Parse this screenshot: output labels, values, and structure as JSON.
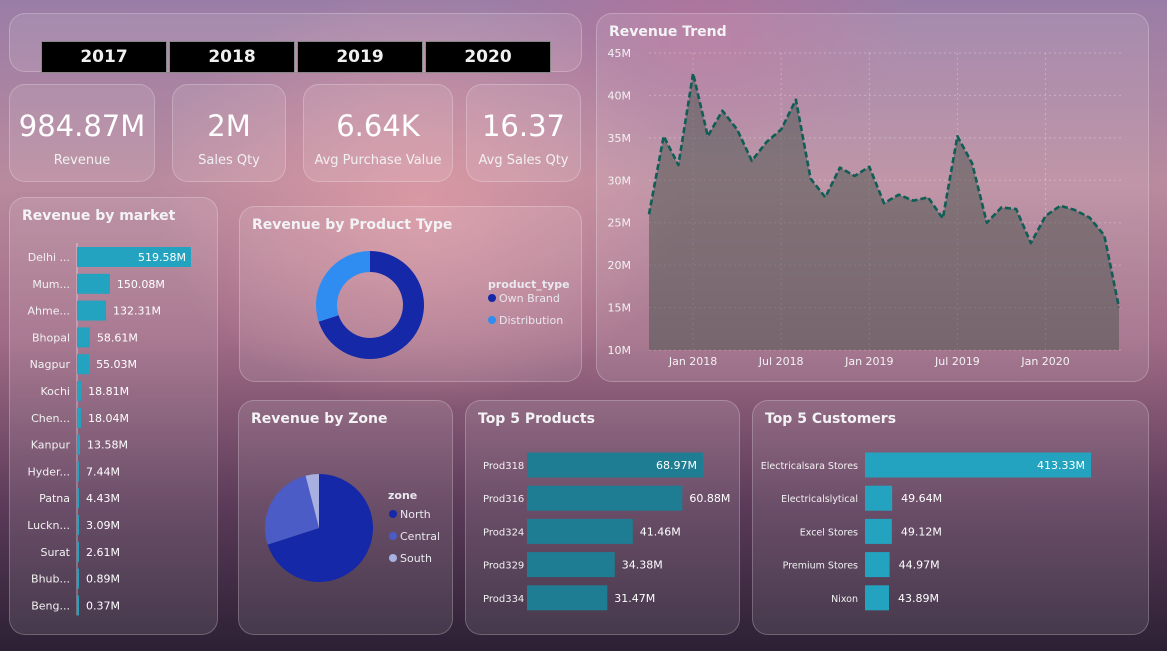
{
  "years": [
    "2017",
    "2018",
    "2019",
    "2020"
  ],
  "kpis": [
    {
      "value": "984.87M",
      "label": "Revenue"
    },
    {
      "value": "2M",
      "label": "Sales Qty"
    },
    {
      "value": "6.64K",
      "label": "Avg Purchase Value"
    },
    {
      "value": "16.37",
      "label": "Avg Sales Qty"
    }
  ],
  "colors": {
    "bar": "#23a3bf",
    "bar_dark": "#1e7d92",
    "navy": "#1428a8",
    "central": "#4b5cc7",
    "south": "#a7b0e0",
    "distribution": "#2f8cf0",
    "trend_line": "#0f5e56"
  },
  "chart_data": [
    {
      "name": "revenue-by-market",
      "type": "bar",
      "orientation": "horizontal",
      "title": "Revenue by market",
      "categories": [
        "Delhi ...",
        "Mum...",
        "Ahme...",
        "Bhopal",
        "Nagpur",
        "Kochi",
        "Chen...",
        "Kanpur",
        "Hyder...",
        "Patna",
        "Luckn...",
        "Surat",
        "Bhub...",
        "Beng..."
      ],
      "values": [
        519.58,
        150.08,
        132.31,
        58.61,
        55.03,
        18.81,
        18.04,
        13.58,
        7.44,
        4.43,
        3.09,
        2.61,
        0.89,
        0.37
      ],
      "labels": [
        "519.58M",
        "150.08M",
        "132.31M",
        "58.61M",
        "55.03M",
        "18.81M",
        "18.04M",
        "13.58M",
        "7.44M",
        "4.43M",
        "3.09M",
        "2.61M",
        "0.89M",
        "0.37M"
      ]
    },
    {
      "name": "revenue-by-product-type",
      "type": "pie",
      "donut": true,
      "title": "Revenue by Product Type",
      "legend_title": "product_type",
      "categories": [
        "Own Brand",
        "Distribution"
      ],
      "values": [
        70,
        30
      ]
    },
    {
      "name": "revenue-trend",
      "type": "area",
      "title": "Revenue Trend",
      "x": [
        "2017-10",
        "2017-11",
        "2017-12",
        "2018-01",
        "2018-02",
        "2018-03",
        "2018-04",
        "2018-05",
        "2018-06",
        "2018-07",
        "2018-08",
        "2018-09",
        "2018-10",
        "2018-11",
        "2018-12",
        "2019-01",
        "2019-02",
        "2019-03",
        "2019-04",
        "2019-05",
        "2019-06",
        "2019-07",
        "2019-08",
        "2019-09",
        "2019-10",
        "2019-11",
        "2019-12",
        "2020-01",
        "2020-02",
        "2020-03",
        "2020-04",
        "2020-05",
        "2020-06"
      ],
      "values": [
        26.0,
        35.2,
        31.8,
        42.6,
        35.2,
        38.2,
        36.0,
        32.3,
        34.5,
        36.0,
        39.5,
        30.2,
        28.0,
        31.5,
        30.5,
        31.6,
        27.3,
        28.3,
        27.6,
        28.0,
        25.5,
        35.2,
        32.0,
        25.0,
        26.8,
        26.6,
        22.6,
        25.8,
        27.0,
        26.5,
        25.6,
        23.5,
        15.0
      ],
      "xticks": [
        "Jan 2018",
        "Jul 2018",
        "Jan 2019",
        "Jul 2019",
        "Jan 2020"
      ],
      "xtick_dates": [
        "2018-01",
        "2018-07",
        "2019-01",
        "2019-07",
        "2020-01"
      ],
      "yticks": [
        "10M",
        "15M",
        "20M",
        "25M",
        "30M",
        "35M",
        "40M",
        "45M"
      ],
      "ylim": [
        10,
        45
      ],
      "grid": true
    },
    {
      "name": "revenue-by-zone",
      "type": "pie",
      "title": "Revenue by Zone",
      "legend_title": "zone",
      "categories": [
        "North",
        "Central",
        "South"
      ],
      "values": [
        70,
        26,
        4
      ]
    },
    {
      "name": "top-5-products",
      "type": "bar",
      "orientation": "horizontal",
      "title": "Top 5 Products",
      "categories": [
        "Prod318",
        "Prod316",
        "Prod324",
        "Prod329",
        "Prod334"
      ],
      "values": [
        68.97,
        60.88,
        41.46,
        34.38,
        31.47
      ],
      "labels": [
        "68.97M",
        "60.88M",
        "41.46M",
        "34.38M",
        "31.47M"
      ]
    },
    {
      "name": "top-5-customers",
      "type": "bar",
      "orientation": "horizontal",
      "title": "Top 5 Customers",
      "categories": [
        "Electricalsara Stores",
        "Electricalslytical",
        "Excel Stores",
        "Premium Stores",
        "Nixon"
      ],
      "values": [
        413.33,
        49.64,
        49.12,
        44.97,
        43.89
      ],
      "labels": [
        "413.33M",
        "49.64M",
        "49.12M",
        "44.97M",
        "43.89M"
      ]
    }
  ]
}
